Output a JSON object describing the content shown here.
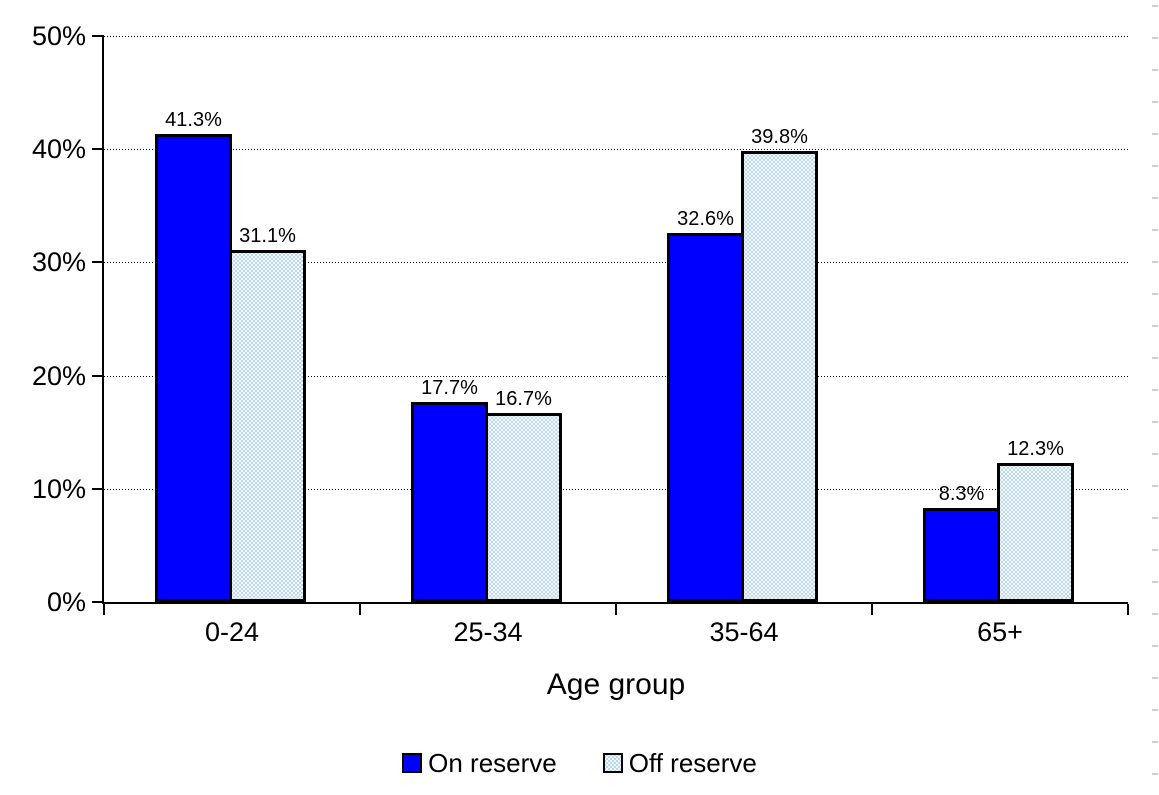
{
  "chart_data": {
    "type": "bar",
    "title": "",
    "xlabel": "Age group",
    "ylabel": "",
    "categories": [
      "0-24",
      "25-34",
      "35-64",
      "65+"
    ],
    "series": [
      {
        "name": "On reserve",
        "values": [
          41.3,
          17.7,
          32.6,
          8.3
        ],
        "labels": [
          "41.3%",
          "17.7%",
          "32.6%",
          "8.3%"
        ],
        "fill": "#0000fe",
        "pattern": "solid"
      },
      {
        "name": "Off reserve",
        "values": [
          31.1,
          16.7,
          39.8,
          12.3
        ],
        "labels": [
          "31.1%",
          "16.7%",
          "39.8%",
          "12.3%"
        ],
        "fill": "#bcd8f0",
        "pattern": "white-dots"
      }
    ],
    "ylim": [
      0,
      50
    ],
    "yticks": [
      0,
      10,
      20,
      30,
      40,
      50
    ],
    "ytick_labels": [
      "0%",
      "10%",
      "20%",
      "30%",
      "40%",
      "50%"
    ],
    "grid": "horizontal dotted",
    "axis_color": "#000000",
    "legend_position": "bottom"
  }
}
